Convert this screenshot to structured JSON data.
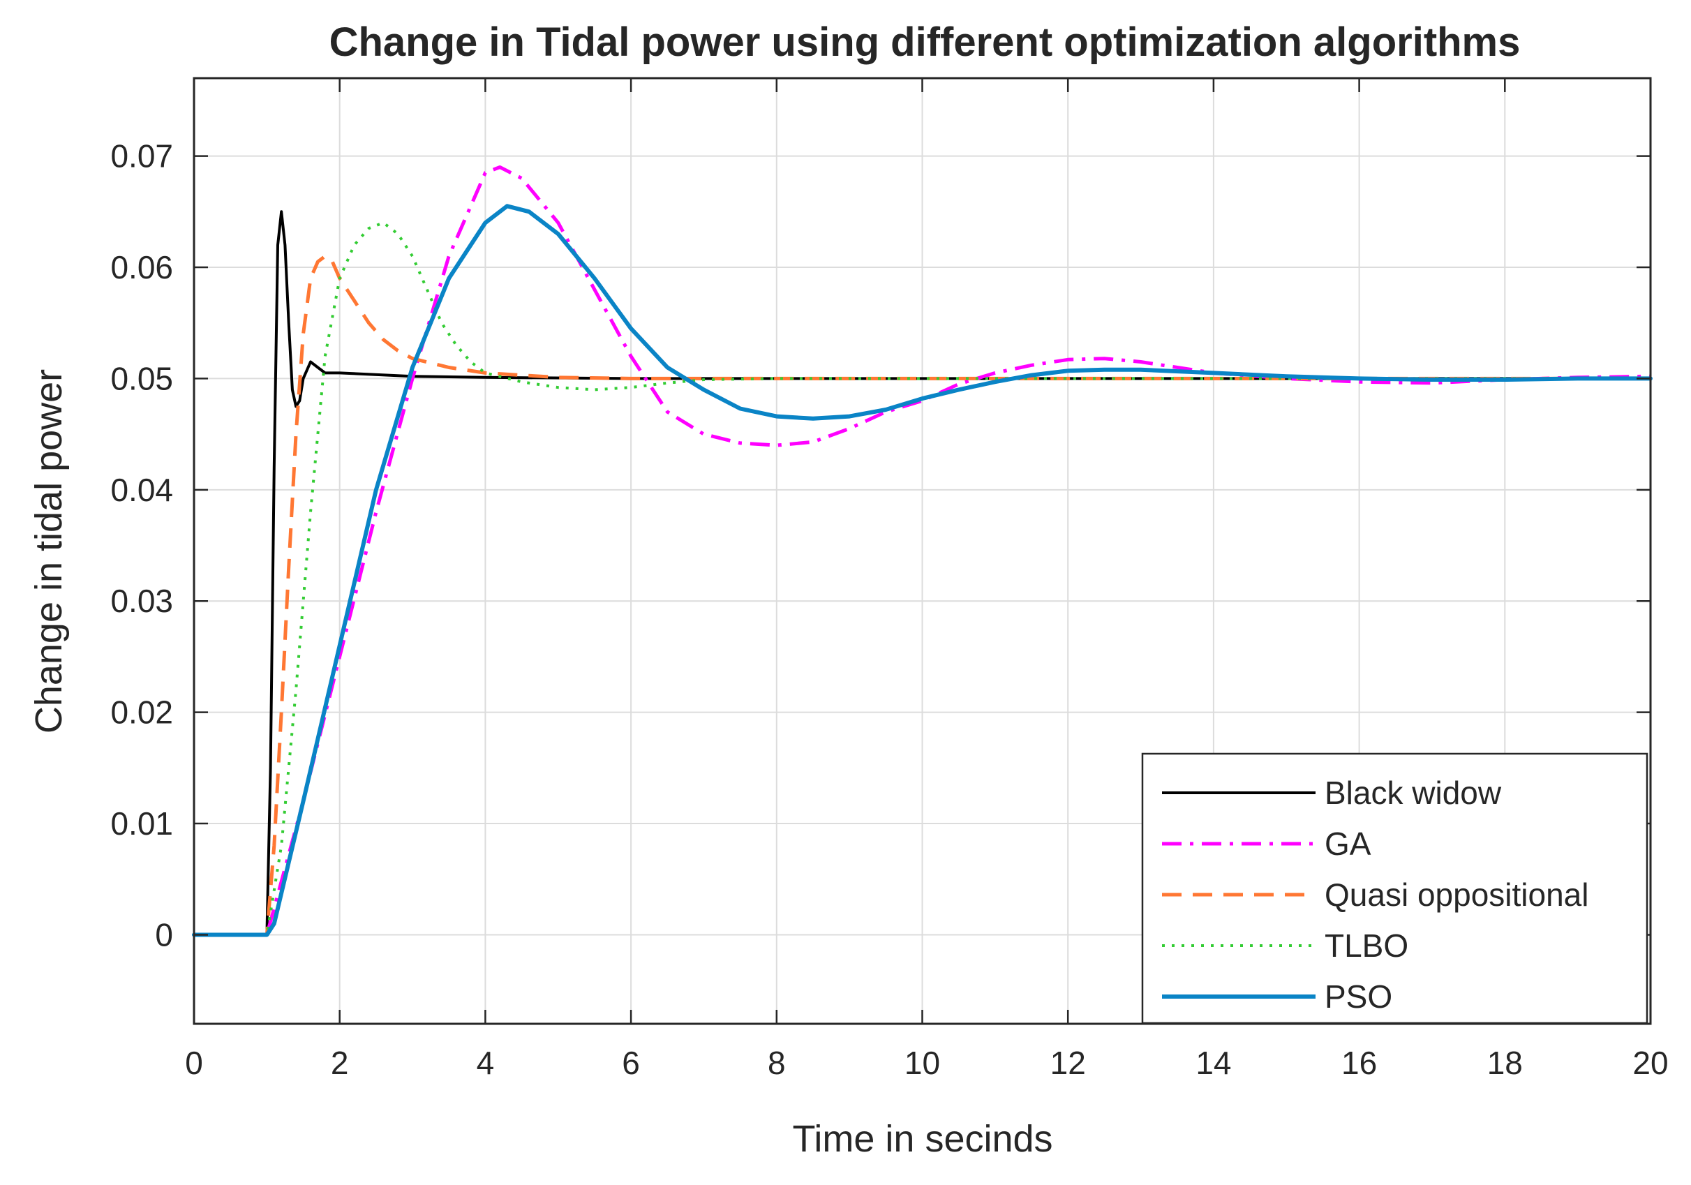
{
  "chart_data": {
    "type": "line",
    "title": "Change in Tidal power using different optimization algorithms",
    "xlabel": "Time in secinds",
    "ylabel": "Change in tidal power",
    "xlim": [
      0,
      20
    ],
    "ylim": [
      -0.008,
      0.077
    ],
    "xticks": [
      0,
      2,
      4,
      6,
      8,
      10,
      12,
      14,
      16,
      18,
      20
    ],
    "xtick_labels": [
      "0",
      "2",
      "4",
      "6",
      "8",
      "10",
      "12",
      "14",
      "16",
      "18",
      "20"
    ],
    "yticks": [
      0,
      0.01,
      0.02,
      0.03,
      0.04,
      0.05,
      0.06,
      0.07
    ],
    "ytick_labels": [
      "0",
      "0.01",
      "0.02",
      "0.03",
      "0.04",
      "0.05",
      "0.06",
      "0.07"
    ],
    "grid": true,
    "legend_position": "bottom-right",
    "series": [
      {
        "name": "Black widow",
        "color": "#000000",
        "dash": "solid",
        "points": [
          [
            0,
            0
          ],
          [
            1,
            0
          ],
          [
            1.05,
            0.015
          ],
          [
            1.1,
            0.042
          ],
          [
            1.15,
            0.062
          ],
          [
            1.2,
            0.065
          ],
          [
            1.25,
            0.062
          ],
          [
            1.3,
            0.055
          ],
          [
            1.35,
            0.049
          ],
          [
            1.4,
            0.0475
          ],
          [
            1.45,
            0.048
          ],
          [
            1.5,
            0.05
          ],
          [
            1.6,
            0.0515
          ],
          [
            1.7,
            0.051
          ],
          [
            1.8,
            0.0505
          ],
          [
            2,
            0.0505
          ],
          [
            3,
            0.0502
          ],
          [
            4,
            0.0501
          ],
          [
            6,
            0.05
          ],
          [
            20,
            0.05
          ]
        ]
      },
      {
        "name": "GA",
        "color": "#ff00ff",
        "dash": "dashdot",
        "points": [
          [
            0,
            0
          ],
          [
            1,
            0
          ],
          [
            1.5,
            0.012
          ],
          [
            2,
            0.025
          ],
          [
            2.5,
            0.038
          ],
          [
            3,
            0.05
          ],
          [
            3.5,
            0.061
          ],
          [
            4,
            0.0685
          ],
          [
            4.2,
            0.069
          ],
          [
            4.5,
            0.068
          ],
          [
            5,
            0.064
          ],
          [
            5.5,
            0.058
          ],
          [
            6,
            0.052
          ],
          [
            6.5,
            0.047
          ],
          [
            7,
            0.045
          ],
          [
            7.5,
            0.0442
          ],
          [
            8,
            0.044
          ],
          [
            8.5,
            0.0443
          ],
          [
            9,
            0.0455
          ],
          [
            9.5,
            0.047
          ],
          [
            10,
            0.048
          ],
          [
            10.5,
            0.0495
          ],
          [
            11,
            0.0505
          ],
          [
            11.5,
            0.0512
          ],
          [
            12,
            0.0517
          ],
          [
            12.5,
            0.0518
          ],
          [
            13,
            0.0515
          ],
          [
            14,
            0.0505
          ],
          [
            15,
            0.05
          ],
          [
            16,
            0.0497
          ],
          [
            17,
            0.0496
          ],
          [
            18,
            0.0499
          ],
          [
            19,
            0.0501
          ],
          [
            20,
            0.0502
          ]
        ]
      },
      {
        "name": "Quasi oppositional",
        "color": "#ff7733",
        "dash": "dashed",
        "points": [
          [
            0,
            0
          ],
          [
            1,
            0
          ],
          [
            1.1,
            0.008
          ],
          [
            1.2,
            0.02
          ],
          [
            1.3,
            0.033
          ],
          [
            1.4,
            0.045
          ],
          [
            1.5,
            0.054
          ],
          [
            1.6,
            0.059
          ],
          [
            1.7,
            0.0605
          ],
          [
            1.8,
            0.061
          ],
          [
            1.9,
            0.0605
          ],
          [
            2,
            0.059
          ],
          [
            2.2,
            0.057
          ],
          [
            2.4,
            0.055
          ],
          [
            2.6,
            0.0535
          ],
          [
            2.8,
            0.0525
          ],
          [
            3,
            0.0518
          ],
          [
            3.5,
            0.051
          ],
          [
            4,
            0.0505
          ],
          [
            5,
            0.0501
          ],
          [
            6,
            0.05
          ],
          [
            20,
            0.05
          ]
        ]
      },
      {
        "name": "TLBO",
        "color": "#33cc33",
        "dash": "dotted",
        "points": [
          [
            0,
            0
          ],
          [
            1,
            0
          ],
          [
            1.2,
            0.008
          ],
          [
            1.4,
            0.022
          ],
          [
            1.6,
            0.038
          ],
          [
            1.8,
            0.052
          ],
          [
            2,
            0.059
          ],
          [
            2.2,
            0.062
          ],
          [
            2.4,
            0.0635
          ],
          [
            2.6,
            0.064
          ],
          [
            2.8,
            0.063
          ],
          [
            3,
            0.061
          ],
          [
            3.2,
            0.058
          ],
          [
            3.4,
            0.055
          ],
          [
            3.6,
            0.053
          ],
          [
            3.8,
            0.0515
          ],
          [
            4,
            0.0505
          ],
          [
            4.5,
            0.0497
          ],
          [
            5,
            0.0492
          ],
          [
            5.5,
            0.049
          ],
          [
            6,
            0.0492
          ],
          [
            6.5,
            0.0496
          ],
          [
            7,
            0.0499
          ],
          [
            8,
            0.05
          ],
          [
            20,
            0.05
          ]
        ]
      },
      {
        "name": "PSO",
        "color": "#0a84c6",
        "dash": "solid",
        "points": [
          [
            0,
            0
          ],
          [
            1,
            0
          ],
          [
            1.1,
            0.001
          ],
          [
            1.5,
            0.012
          ],
          [
            2,
            0.026
          ],
          [
            2.5,
            0.04
          ],
          [
            3,
            0.051
          ],
          [
            3.5,
            0.059
          ],
          [
            4,
            0.064
          ],
          [
            4.3,
            0.0655
          ],
          [
            4.6,
            0.065
          ],
          [
            5,
            0.063
          ],
          [
            5.5,
            0.059
          ],
          [
            6,
            0.0545
          ],
          [
            6.5,
            0.051
          ],
          [
            7,
            0.049
          ],
          [
            7.5,
            0.0473
          ],
          [
            8,
            0.0466
          ],
          [
            8.5,
            0.0464
          ],
          [
            9,
            0.0466
          ],
          [
            9.5,
            0.0472
          ],
          [
            10,
            0.0482
          ],
          [
            10.5,
            0.049
          ],
          [
            11,
            0.0497
          ],
          [
            11.5,
            0.0503
          ],
          [
            12,
            0.0507
          ],
          [
            12.5,
            0.0508
          ],
          [
            13,
            0.0508
          ],
          [
            14,
            0.0505
          ],
          [
            15,
            0.0502
          ],
          [
            16,
            0.05
          ],
          [
            17,
            0.0499
          ],
          [
            18,
            0.0499
          ],
          [
            19,
            0.05
          ],
          [
            20,
            0.05
          ]
        ]
      }
    ]
  }
}
